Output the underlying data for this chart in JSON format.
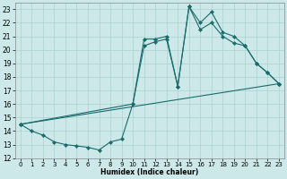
{
  "xlabel": "Humidex (Indice chaleur)",
  "xlim": [
    -0.5,
    23.5
  ],
  "ylim": [
    12,
    23.5
  ],
  "yticks": [
    12,
    13,
    14,
    15,
    16,
    17,
    18,
    19,
    20,
    21,
    22,
    23
  ],
  "xticks": [
    0,
    1,
    2,
    3,
    4,
    5,
    6,
    7,
    8,
    9,
    10,
    11,
    12,
    13,
    14,
    15,
    16,
    17,
    18,
    19,
    20,
    21,
    22,
    23
  ],
  "bg_color": "#cce8e8",
  "grid_color": "#aad0d0",
  "line_color": "#1a6b6b",
  "line1_x": [
    0,
    1,
    2,
    3,
    4,
    5,
    6,
    7,
    8,
    9,
    10,
    11,
    12,
    13,
    14,
    15,
    16,
    17,
    18,
    19,
    20,
    21,
    22,
    23
  ],
  "line1_y": [
    14.5,
    14.0,
    13.7,
    13.2,
    13.0,
    12.9,
    12.8,
    12.6,
    13.2,
    13.4,
    16.0,
    20.8,
    20.8,
    21.0,
    17.3,
    23.2,
    22.0,
    22.8,
    21.3,
    21.0,
    20.3,
    19.0,
    18.3,
    17.5
  ],
  "line2_x": [
    0,
    10,
    11,
    12,
    13,
    14,
    15,
    16,
    17,
    18,
    19,
    20,
    21,
    22,
    23
  ],
  "line2_y": [
    14.5,
    16.0,
    20.3,
    20.6,
    20.8,
    17.3,
    23.2,
    21.5,
    22.0,
    21.0,
    20.5,
    20.3,
    19.0,
    18.3,
    17.5
  ],
  "line3_x": [
    0,
    23
  ],
  "line3_y": [
    14.5,
    17.5
  ]
}
